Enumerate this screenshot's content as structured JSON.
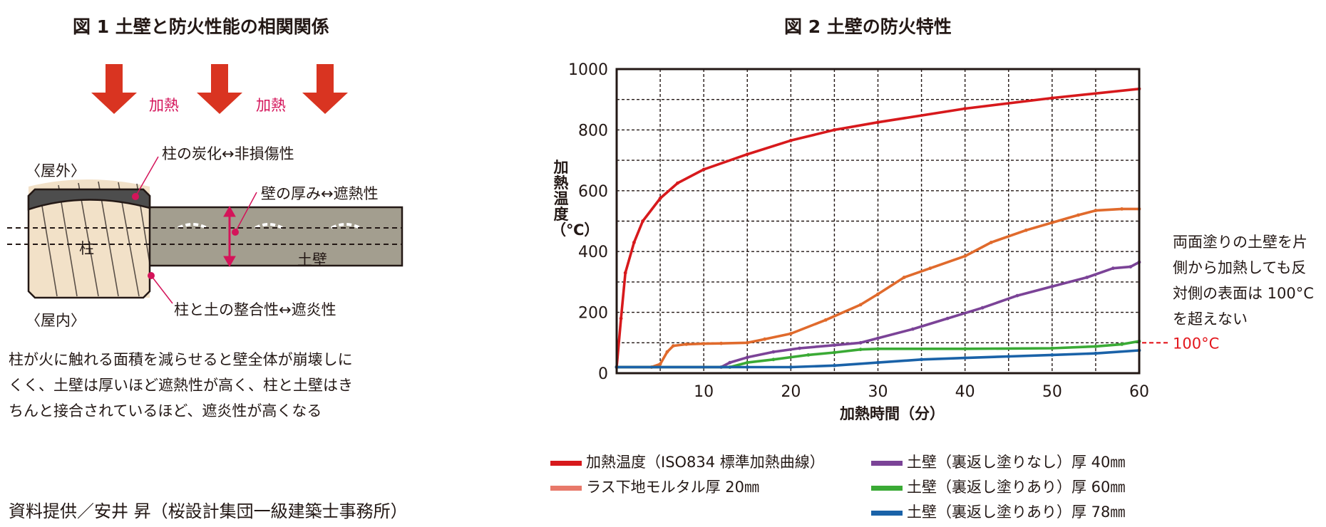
{
  "fig1": {
    "title": "図 1 土壁と防火性能の相関関係",
    "heat_label": "加熱",
    "outdoor": "〈屋外〉",
    "indoor": "〈屋内〉",
    "pillar": "柱",
    "wall": "土壁",
    "note_char": "柱の炭化↔非損傷性",
    "note_thick": "壁の厚み↔遮熱性",
    "note_fit": "柱と土の整合性↔遮炎性",
    "desc": [
      "柱が火に触れる面積を減らせると壁全体が崩壊しに",
      "くく、土壁は厚いほど遮熱性が高く、柱と土壁はき",
      "ちんと接合されているほど、遮炎性が高くなる"
    ]
  },
  "credit": "資料提供／安井 昇（桜設計集団一級建築士事務所）",
  "fig2": {
    "title": "図 2 土壁の防火特性",
    "annotation": [
      "両面塗りの土壁を片",
      "側から加熱しても反",
      "対側の表面は 100°C",
      "を超えない"
    ],
    "threshold_label": "100°C"
  },
  "chart_data": {
    "type": "line",
    "title": "図 2 土壁の防火特性",
    "xlabel": "加熱時間（分）",
    "ylabel": "加熱温度（℃）",
    "xlim": [
      0,
      60
    ],
    "ylim": [
      0,
      1000
    ],
    "xticks": [
      10,
      20,
      30,
      40,
      50,
      60
    ],
    "yticks": [
      0,
      200,
      400,
      600,
      800,
      1000
    ],
    "grid": true,
    "legend_position": "bottom",
    "threshold": 100,
    "series": [
      {
        "name": "加熱温度（ISO834 標準加熱曲線）",
        "color": "#d7191c",
        "points": [
          [
            0,
            20
          ],
          [
            0.5,
            180
          ],
          [
            1,
            330
          ],
          [
            2,
            430
          ],
          [
            3,
            500
          ],
          [
            5,
            575
          ],
          [
            7,
            625
          ],
          [
            10,
            670
          ],
          [
            15,
            720
          ],
          [
            20,
            765
          ],
          [
            25,
            800
          ],
          [
            30,
            825
          ],
          [
            40,
            870
          ],
          [
            50,
            905
          ],
          [
            60,
            935
          ]
        ]
      },
      {
        "name": "ラス下地モルタル厚 20㎜",
        "color": "#e06a2c",
        "points": [
          [
            0,
            20
          ],
          [
            4,
            20
          ],
          [
            5,
            30
          ],
          [
            5.8,
            70
          ],
          [
            6.5,
            90
          ],
          [
            8,
            95
          ],
          [
            10,
            97
          ],
          [
            12,
            98
          ],
          [
            15,
            100
          ],
          [
            17,
            112
          ],
          [
            20,
            130
          ],
          [
            24,
            175
          ],
          [
            28,
            225
          ],
          [
            30,
            260
          ],
          [
            33,
            315
          ],
          [
            36,
            345
          ],
          [
            40,
            385
          ],
          [
            43,
            430
          ],
          [
            47,
            470
          ],
          [
            50,
            495
          ],
          [
            53,
            520
          ],
          [
            55,
            535
          ],
          [
            58,
            540
          ],
          [
            60,
            540
          ]
        ]
      },
      {
        "name": "土壁（裏返し塗りなし）厚 40㎜",
        "color": "#7b4397",
        "points": [
          [
            0,
            20
          ],
          [
            12,
            20
          ],
          [
            13,
            35
          ],
          [
            15,
            52
          ],
          [
            18,
            70
          ],
          [
            21,
            82
          ],
          [
            25,
            92
          ],
          [
            28,
            100
          ],
          [
            30,
            115
          ],
          [
            34,
            145
          ],
          [
            38,
            180
          ],
          [
            42,
            215
          ],
          [
            46,
            255
          ],
          [
            50,
            285
          ],
          [
            54,
            315
          ],
          [
            57,
            345
          ],
          [
            59,
            350
          ],
          [
            60,
            365
          ]
        ]
      },
      {
        "name": "土壁（裏返し塗りあり）厚 60㎜",
        "color": "#3aaa35",
        "points": [
          [
            0,
            20
          ],
          [
            13,
            20
          ],
          [
            15,
            35
          ],
          [
            18,
            45
          ],
          [
            22,
            60
          ],
          [
            25,
            68
          ],
          [
            28,
            78
          ],
          [
            30,
            80
          ],
          [
            40,
            80
          ],
          [
            50,
            82
          ],
          [
            55,
            88
          ],
          [
            58,
            95
          ],
          [
            60,
            105
          ]
        ]
      },
      {
        "name": "土壁（裏返し塗りあり）厚 78㎜",
        "color": "#1a62a8",
        "points": [
          [
            0,
            20
          ],
          [
            15,
            20
          ],
          [
            20,
            20
          ],
          [
            25,
            25
          ],
          [
            30,
            35
          ],
          [
            35,
            45
          ],
          [
            40,
            50
          ],
          [
            45,
            55
          ],
          [
            50,
            60
          ],
          [
            55,
            65
          ],
          [
            60,
            75
          ]
        ]
      }
    ]
  }
}
